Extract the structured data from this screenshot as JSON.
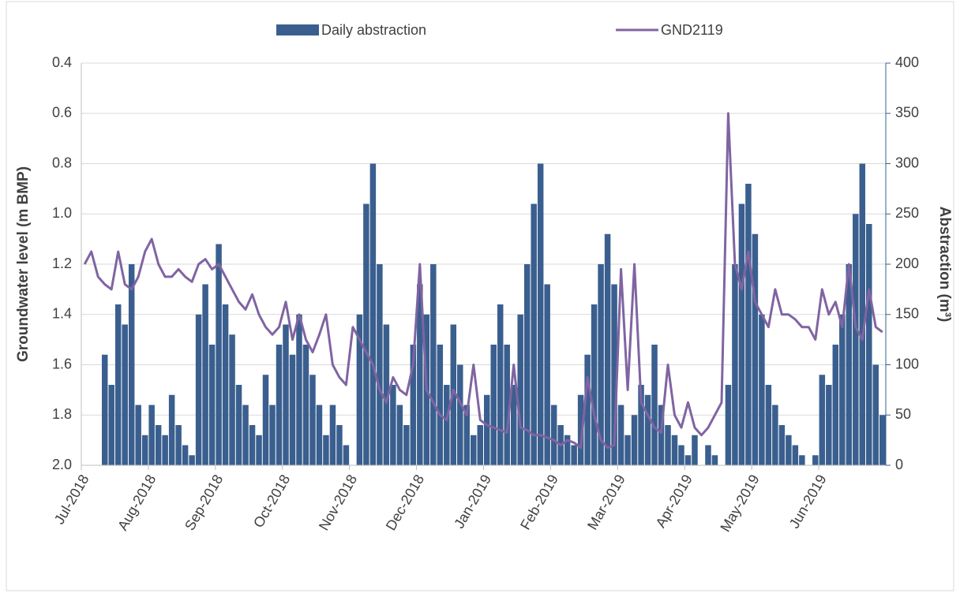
{
  "chart_data": {
    "type": "bar_line",
    "y_label": "Groundwater level (m BMP)",
    "y2_label": "Abstraction (m³)",
    "categories": [
      "Jul-2018",
      null,
      null,
      null,
      null,
      null,
      null,
      null,
      null,
      null,
      "Aug-2018",
      null,
      null,
      null,
      null,
      null,
      null,
      null,
      null,
      null,
      "Sep-2018",
      null,
      null,
      null,
      null,
      null,
      null,
      null,
      null,
      null,
      "Oct-2018",
      null,
      null,
      null,
      null,
      null,
      null,
      null,
      null,
      null,
      "Nov-2018",
      null,
      null,
      null,
      null,
      null,
      null,
      null,
      null,
      null,
      "Dec-2018",
      null,
      null,
      null,
      null,
      null,
      null,
      null,
      null,
      null,
      "Jan-2019",
      null,
      null,
      null,
      null,
      null,
      null,
      null,
      null,
      null,
      "Feb-2019",
      null,
      null,
      null,
      null,
      null,
      null,
      null,
      null,
      null,
      "Mar-2019",
      null,
      null,
      null,
      null,
      null,
      null,
      null,
      null,
      null,
      "Apr-2019",
      null,
      null,
      null,
      null,
      null,
      null,
      null,
      null,
      null,
      "May-2019",
      null,
      null,
      null,
      null,
      null,
      null,
      null,
      null,
      null,
      "Jun-2019",
      null,
      null,
      null,
      null,
      null,
      null,
      null,
      null,
      null
    ],
    "series": [
      {
        "name": "Daily abstraction",
        "kind": "bar",
        "axis": "y2",
        "color": "#3a5f8f",
        "values": [
          0,
          0,
          0,
          110,
          80,
          160,
          140,
          200,
          60,
          30,
          60,
          40,
          30,
          70,
          40,
          20,
          10,
          150,
          180,
          120,
          220,
          160,
          130,
          80,
          60,
          40,
          30,
          90,
          60,
          120,
          140,
          110,
          150,
          120,
          90,
          60,
          30,
          60,
          40,
          20,
          0,
          150,
          260,
          300,
          200,
          140,
          80,
          60,
          40,
          120,
          180,
          150,
          200,
          120,
          80,
          140,
          100,
          60,
          30,
          40,
          70,
          120,
          160,
          120,
          80,
          150,
          200,
          260,
          300,
          180,
          60,
          40,
          30,
          20,
          70,
          110,
          160,
          200,
          230,
          180,
          60,
          30,
          50,
          80,
          70,
          120,
          60,
          40,
          30,
          20,
          10,
          30,
          0,
          20,
          10,
          0,
          80,
          200,
          260,
          280,
          230,
          150,
          80,
          60,
          40,
          30,
          20,
          10,
          0,
          10,
          90,
          80,
          120,
          150,
          200,
          250,
          300,
          240,
          100,
          50
        ]
      },
      {
        "name": "GND2119",
        "kind": "line",
        "axis": "y",
        "color": "#8064a2",
        "values": [
          1.2,
          1.15,
          1.25,
          1.28,
          1.3,
          1.15,
          1.28,
          1.3,
          1.25,
          1.15,
          1.1,
          1.2,
          1.25,
          1.25,
          1.22,
          1.25,
          1.27,
          1.2,
          1.18,
          1.22,
          1.2,
          1.25,
          1.3,
          1.35,
          1.38,
          1.32,
          1.4,
          1.45,
          1.48,
          1.45,
          1.35,
          1.5,
          1.4,
          1.5,
          1.55,
          1.48,
          1.4,
          1.6,
          1.65,
          1.68,
          1.45,
          1.5,
          1.55,
          1.6,
          1.7,
          1.75,
          1.65,
          1.7,
          1.72,
          1.6,
          1.2,
          1.7,
          1.75,
          1.8,
          1.82,
          1.7,
          1.75,
          1.8,
          1.6,
          1.82,
          1.84,
          1.85,
          1.86,
          1.87,
          1.6,
          1.85,
          1.86,
          1.88,
          1.88,
          1.89,
          1.9,
          1.92,
          1.9,
          1.91,
          1.93,
          1.65,
          1.8,
          1.9,
          1.93,
          1.92,
          1.22,
          1.7,
          1.2,
          1.75,
          1.8,
          1.85,
          1.87,
          1.6,
          1.8,
          1.85,
          1.75,
          1.85,
          1.88,
          1.85,
          1.8,
          1.75,
          0.6,
          1.2,
          1.3,
          1.15,
          1.35,
          1.4,
          1.45,
          1.3,
          1.4,
          1.4,
          1.42,
          1.45,
          1.45,
          1.5,
          1.3,
          1.4,
          1.35,
          1.45,
          1.2,
          1.45,
          1.5,
          1.3,
          1.45,
          1.47
        ]
      }
    ],
    "ylim": [
      2.0,
      0.4
    ],
    "yticks": [
      {
        "value": 2.0,
        "label": "2.0"
      },
      1.8,
      1.6,
      1.4,
      1.2,
      {
        "value": 1.0,
        "label": "1.0"
      },
      0.8,
      0.6,
      0.4
    ],
    "y2lim": [
      0,
      400
    ],
    "y2ticks": [
      0,
      50,
      100,
      150,
      200,
      250,
      300,
      350,
      400
    ],
    "grid": true
  }
}
